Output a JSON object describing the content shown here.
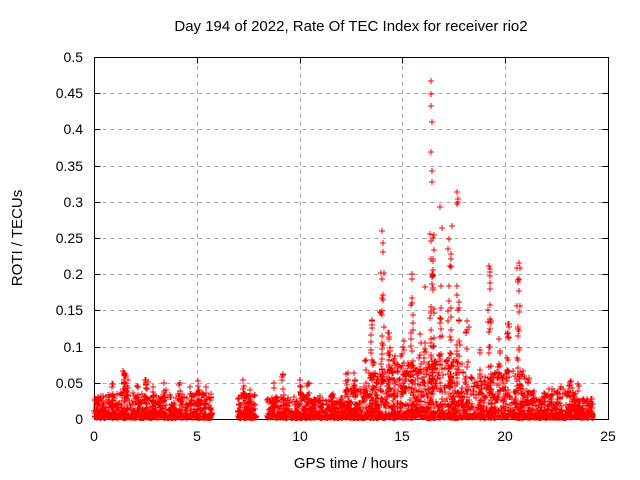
{
  "chart_data": {
    "type": "scatter",
    "title": "Day 194 of 2022, Rate Of TEC Index for receiver rio2",
    "xlabel": "GPS time / hours",
    "ylabel": "ROTI / TECUs",
    "xlim": [
      0,
      25
    ],
    "ylim": [
      0,
      0.5
    ],
    "xticks": [
      0,
      5,
      10,
      15,
      20,
      25
    ],
    "xtick_labels": [
      "0",
      "5",
      "10",
      "15",
      "20",
      "25"
    ],
    "yticks": [
      0,
      0.05,
      0.1,
      0.15,
      0.2,
      0.25,
      0.3,
      0.35,
      0.4,
      0.45,
      0.5
    ],
    "ytick_labels": [
      "0",
      "0.05",
      "0.1",
      "0.15",
      "0.2",
      "0.25",
      "0.3",
      "0.35",
      "0.4",
      "0.45",
      "0.5"
    ],
    "grid": true,
    "grid_style": "dashed",
    "legend": "none",
    "marker": "plus",
    "marker_px": 7,
    "colors": {
      "points": "#ff0000",
      "axes": "#000000",
      "grid": "#a9a9a9",
      "background": "#ffffff",
      "text": "#000000"
    },
    "seed": 194,
    "band_power": 2.6,
    "column_power": 1.4,
    "data_gaps_hours": [
      [
        5.74,
        7.0
      ],
      [
        7.86,
        8.4
      ],
      [
        24.28,
        25
      ]
    ],
    "baseline_bands": [
      {
        "t": [
          0.0,
          0.35
        ],
        "top": 0.03,
        "n": 60
      },
      {
        "t": [
          0.35,
          5.74
        ],
        "top": 0.034,
        "n": 660
      },
      {
        "t": [
          7.0,
          7.86
        ],
        "top": 0.032,
        "n": 110
      },
      {
        "t": [
          8.4,
          12.0
        ],
        "top": 0.03,
        "n": 440
      },
      {
        "t": [
          12.0,
          13.35
        ],
        "top": 0.042,
        "n": 175
      },
      {
        "t": [
          13.35,
          14.3
        ],
        "top": 0.065,
        "n": 150
      },
      {
        "t": [
          14.3,
          16.25
        ],
        "top": 0.075,
        "n": 300
      },
      {
        "t": [
          16.25,
          18.0
        ],
        "top": 0.08,
        "n": 280
      },
      {
        "t": [
          18.0,
          19.0
        ],
        "top": 0.06,
        "n": 140
      },
      {
        "t": [
          19.0,
          21.0
        ],
        "top": 0.065,
        "n": 280
      },
      {
        "t": [
          21.0,
          22.6
        ],
        "top": 0.04,
        "n": 210
      },
      {
        "t": [
          22.6,
          23.6
        ],
        "top": 0.048,
        "n": 135
      },
      {
        "t": [
          23.6,
          24.28
        ],
        "top": 0.026,
        "n": 88
      }
    ],
    "spike_columns": [
      {
        "t": 0.9,
        "spread": 0.06,
        "v": [
          0.025,
          0.052
        ],
        "n": 8
      },
      {
        "t": 1.45,
        "spread": 0.09,
        "v": [
          0.03,
          0.068
        ],
        "n": 20
      },
      {
        "t": 1.63,
        "spread": 0.05,
        "v": [
          0.03,
          0.058
        ],
        "n": 10
      },
      {
        "t": 2.1,
        "spread": 0.05,
        "v": [
          0.02,
          0.046
        ],
        "n": 8
      },
      {
        "t": 2.55,
        "spread": 0.06,
        "v": [
          0.02,
          0.054
        ],
        "n": 10
      },
      {
        "t": 2.9,
        "spread": 0.05,
        "v": [
          0.02,
          0.05
        ],
        "n": 8
      },
      {
        "t": 3.45,
        "spread": 0.06,
        "v": [
          0.02,
          0.05
        ],
        "n": 8
      },
      {
        "t": 4.15,
        "spread": 0.06,
        "v": [
          0.02,
          0.054
        ],
        "n": 9
      },
      {
        "t": 4.7,
        "spread": 0.07,
        "v": [
          0.02,
          0.046
        ],
        "n": 8
      },
      {
        "t": 5.1,
        "spread": 0.08,
        "v": [
          0.02,
          0.058
        ],
        "n": 10
      },
      {
        "t": 5.45,
        "spread": 0.06,
        "v": [
          0.02,
          0.045
        ],
        "n": 7
      },
      {
        "t": 7.3,
        "spread": 0.07,
        "v": [
          0.02,
          0.057
        ],
        "n": 9
      },
      {
        "t": 7.6,
        "spread": 0.06,
        "v": [
          0.02,
          0.045
        ],
        "n": 7
      },
      {
        "t": 8.8,
        "spread": 0.05,
        "v": [
          0.02,
          0.05
        ],
        "n": 7
      },
      {
        "t": 9.2,
        "spread": 0.06,
        "v": [
          0.025,
          0.064
        ],
        "n": 11
      },
      {
        "t": 10.05,
        "spread": 0.06,
        "v": [
          0.02,
          0.055
        ],
        "n": 9
      },
      {
        "t": 10.4,
        "spread": 0.05,
        "v": [
          0.02,
          0.05
        ],
        "n": 7
      },
      {
        "t": 11.0,
        "spread": 0.05,
        "v": [
          0.015,
          0.035
        ],
        "n": 6
      },
      {
        "t": 11.6,
        "spread": 0.05,
        "v": [
          0.02,
          0.042
        ],
        "n": 7
      },
      {
        "t": 12.3,
        "spread": 0.07,
        "v": [
          0.025,
          0.065
        ],
        "n": 10
      },
      {
        "t": 12.65,
        "spread": 0.07,
        "v": [
          0.03,
          0.079
        ],
        "n": 12
      },
      {
        "t": 13.25,
        "spread": 0.06,
        "v": [
          0.03,
          0.088
        ],
        "n": 10
      },
      {
        "t": 13.55,
        "spread": 0.08,
        "v": [
          0.04,
          0.14
        ],
        "n": 22
      },
      {
        "t": 14.0,
        "spread": 0.09,
        "v": [
          0.05,
          0.21
        ],
        "n": 30
      },
      {
        "t": 14.35,
        "spread": 0.06,
        "v": [
          0.04,
          0.135
        ],
        "n": 16
      },
      {
        "t": 14.6,
        "spread": 0.07,
        "v": [
          0.03,
          0.1
        ],
        "n": 12
      },
      {
        "t": 15.0,
        "spread": 0.08,
        "v": [
          0.03,
          0.112
        ],
        "n": 14
      },
      {
        "t": 15.45,
        "spread": 0.08,
        "v": [
          0.04,
          0.205
        ],
        "n": 24
      },
      {
        "t": 15.85,
        "spread": 0.06,
        "v": [
          0.03,
          0.12
        ],
        "n": 12
      },
      {
        "t": 16.1,
        "spread": 0.05,
        "v": [
          0.04,
          0.19
        ],
        "n": 12
      },
      {
        "t": 16.45,
        "spread": 0.09,
        "v": [
          0.05,
          0.26
        ],
        "n": 40
      },
      {
        "t": 16.85,
        "spread": 0.07,
        "v": [
          0.04,
          0.225
        ],
        "n": 18
      },
      {
        "t": 17.3,
        "spread": 0.09,
        "v": [
          0.05,
          0.25
        ],
        "n": 26
      },
      {
        "t": 17.7,
        "spread": 0.08,
        "v": [
          0.04,
          0.19
        ],
        "n": 20
      },
      {
        "t": 18.15,
        "spread": 0.07,
        "v": [
          0.03,
          0.14
        ],
        "n": 14
      },
      {
        "t": 18.8,
        "spread": 0.07,
        "v": [
          0.025,
          0.1
        ],
        "n": 10
      },
      {
        "t": 19.25,
        "spread": 0.08,
        "v": [
          0.04,
          0.205
        ],
        "n": 24
      },
      {
        "t": 19.7,
        "spread": 0.07,
        "v": [
          0.03,
          0.12
        ],
        "n": 12
      },
      {
        "t": 20.15,
        "spread": 0.07,
        "v": [
          0.03,
          0.155
        ],
        "n": 16
      },
      {
        "t": 20.65,
        "spread": 0.09,
        "v": [
          0.04,
          0.21
        ],
        "n": 26
      },
      {
        "t": 21.15,
        "spread": 0.06,
        "v": [
          0.02,
          0.065
        ],
        "n": 8
      },
      {
        "t": 23.15,
        "spread": 0.13,
        "v": [
          0.015,
          0.056
        ],
        "n": 14
      }
    ],
    "outlier_points": [
      [
        16.38,
        0.467
      ],
      [
        16.4,
        0.449
      ],
      [
        16.39,
        0.432
      ],
      [
        16.42,
        0.41
      ],
      [
        16.37,
        0.369
      ],
      [
        16.44,
        0.342
      ],
      [
        16.42,
        0.327
      ],
      [
        17.66,
        0.314
      ],
      [
        17.68,
        0.304
      ],
      [
        17.71,
        0.3
      ],
      [
        17.67,
        0.297
      ],
      [
        16.83,
        0.293
      ],
      [
        16.93,
        0.264
      ],
      [
        17.42,
        0.266
      ],
      [
        14.02,
        0.259
      ],
      [
        14.05,
        0.243
      ],
      [
        14.08,
        0.231
      ],
      [
        16.35,
        0.255
      ],
      [
        16.48,
        0.25
      ],
      [
        17.28,
        0.248
      ],
      [
        19.22,
        0.212
      ],
      [
        19.25,
        0.207
      ],
      [
        20.66,
        0.216
      ],
      [
        20.7,
        0.209
      ],
      [
        24.0,
        0.024
      ]
    ]
  }
}
